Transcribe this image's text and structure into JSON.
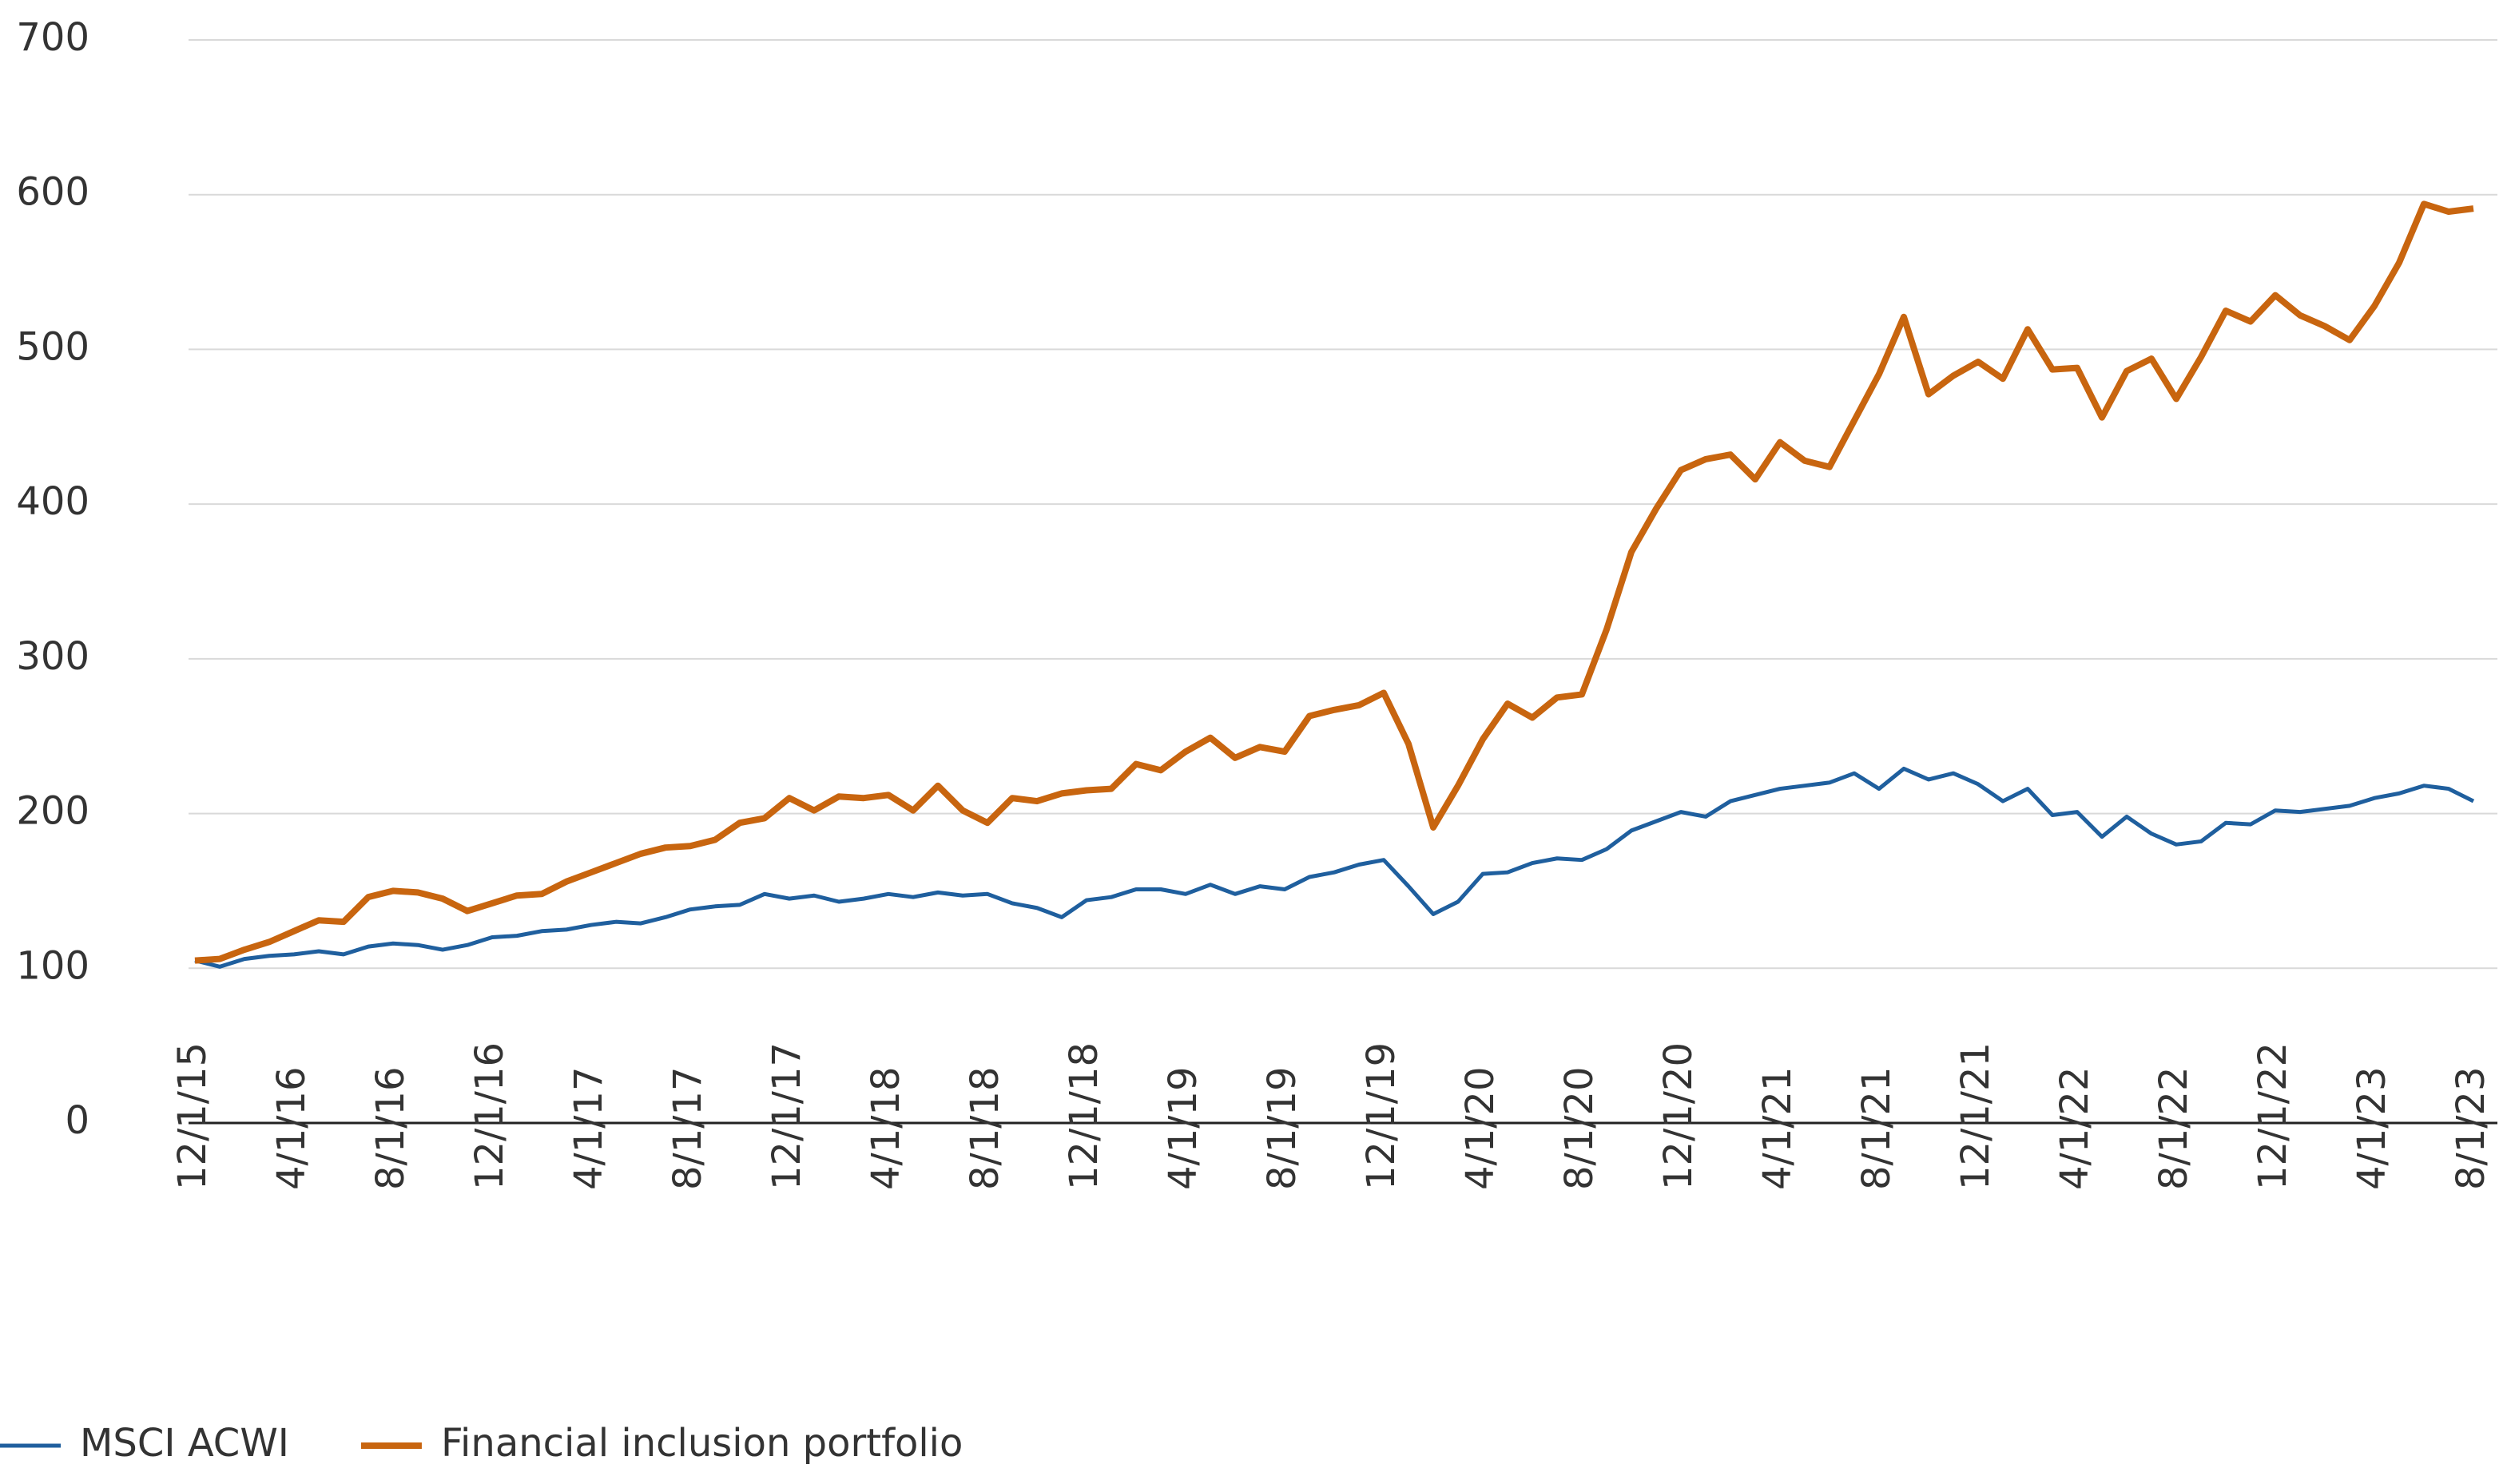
{
  "chart_data": {
    "type": "line",
    "categories": [
      "12/1/15",
      null,
      null,
      null,
      "4/1/16",
      null,
      null,
      null,
      "8/1/16",
      null,
      null,
      null,
      "12/1/16",
      null,
      null,
      null,
      "4/1/17",
      null,
      null,
      null,
      "8/1/17",
      null,
      null,
      null,
      "12/1/17",
      null,
      null,
      null,
      "4/1/18",
      null,
      null,
      null,
      "8/1/18",
      null,
      null,
      null,
      "12/1/18",
      null,
      null,
      null,
      "4/1/19",
      null,
      null,
      null,
      "8/1/19",
      null,
      null,
      null,
      "12/1/19",
      null,
      null,
      null,
      "4/1/20",
      null,
      null,
      null,
      "8/1/20",
      null,
      null,
      null,
      "12/1/20",
      null,
      null,
      null,
      "4/1/21",
      null,
      null,
      null,
      "8/1/21",
      null,
      null,
      null,
      "12/1/21",
      null,
      null,
      null,
      "4/1/22",
      null,
      null,
      null,
      "8/1/22",
      null,
      null,
      null,
      "12/1/22",
      null,
      null,
      null,
      "4/1/23",
      null,
      null,
      null,
      "8/1/23"
    ],
    "series": [
      {
        "name": "MSCI ACWI",
        "color": "#1f5f9e",
        "values": [
          105,
          101,
          106,
          108,
          109,
          111,
          109,
          114,
          116,
          115,
          112,
          115,
          120,
          121,
          124,
          125,
          128,
          130,
          129,
          133,
          138,
          140,
          141,
          148,
          145,
          147,
          143,
          145,
          148,
          146,
          149,
          147,
          148,
          142,
          139,
          133,
          144,
          146,
          151,
          151,
          148,
          154,
          148,
          153,
          151,
          159,
          162,
          167,
          170,
          153,
          135,
          143,
          161,
          162,
          168,
          171,
          170,
          177,
          189,
          195,
          201,
          198,
          208,
          212,
          216,
          218,
          220,
          226,
          216,
          229,
          222,
          226,
          219,
          208,
          216,
          199,
          201,
          185,
          198,
          187,
          180,
          182,
          194,
          193,
          202,
          201,
          203,
          205,
          210,
          213,
          218,
          216,
          208
        ]
      },
      {
        "name": "Financial inclusion portfolio",
        "color": "#c8650f",
        "values": [
          105,
          106,
          112,
          117,
          124,
          131,
          130,
          146,
          150,
          149,
          145,
          137,
          142,
          147,
          148,
          156,
          162,
          168,
          174,
          178,
          179,
          183,
          194,
          197,
          210,
          202,
          211,
          210,
          212,
          202,
          218,
          202,
          194,
          210,
          208,
          213,
          215,
          216,
          232,
          228,
          240,
          249,
          236,
          243,
          240,
          263,
          267,
          270,
          278,
          245,
          191,
          218,
          248,
          271,
          262,
          275,
          277,
          319,
          369,
          397,
          422,
          429,
          432,
          416,
          440,
          428,
          424,
          454,
          484,
          521,
          471,
          483,
          492,
          481,
          513,
          487,
          488,
          456,
          486,
          494,
          468,
          495,
          525,
          518,
          535,
          522,
          515,
          506,
          528,
          556,
          594,
          589,
          591
        ]
      }
    ],
    "ylim": [
      0,
      700
    ],
    "yticks": [
      0,
      100,
      200,
      300,
      400,
      500,
      600,
      700
    ],
    "grid": true,
    "legend": "bottom-left"
  }
}
